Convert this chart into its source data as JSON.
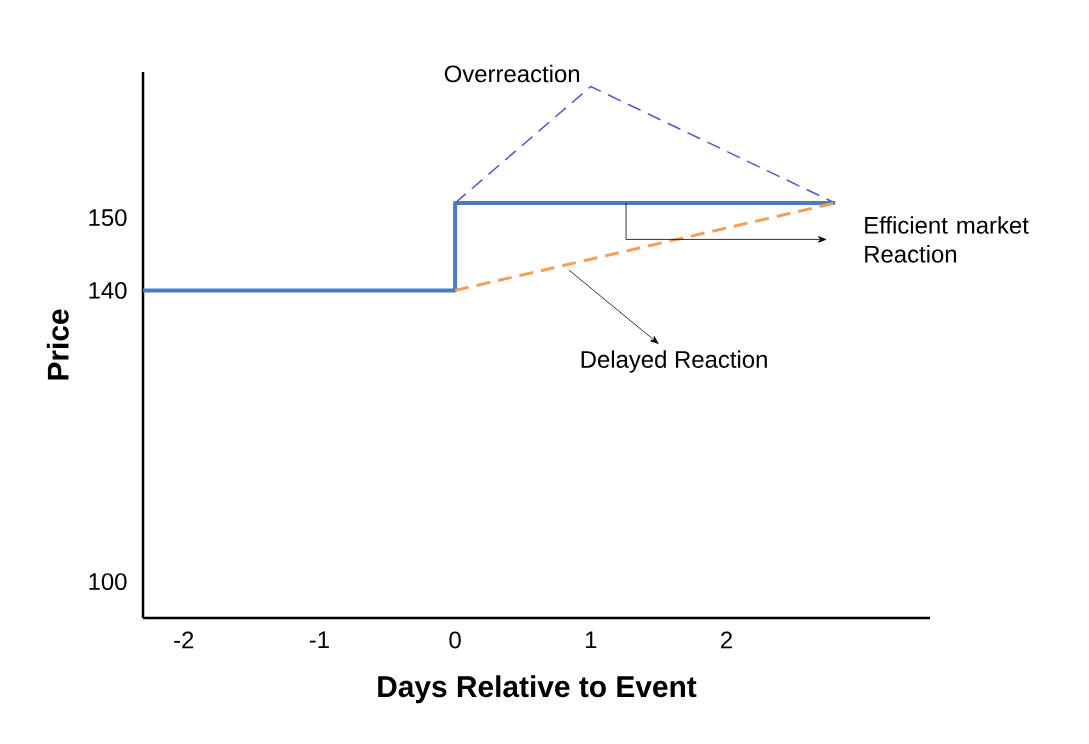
{
  "chart_data": {
    "type": "line",
    "xlabel": "Days Relative to Event",
    "ylabel": "Price",
    "xlim": [
      -2.3,
      3.5
    ],
    "ylim": [
      95,
      170
    ],
    "xticks": [
      -2,
      -1,
      0,
      1,
      2
    ],
    "yticks": [
      100,
      140,
      150
    ],
    "grid": false,
    "marker": "none",
    "series": [
      {
        "name": "Overreaction",
        "color": "#5555cc",
        "line_style": "dashed",
        "x": [
          0,
          1,
          2.8
        ],
        "values": [
          152,
          168,
          152
        ]
      },
      {
        "name": "Efficient market Reaction",
        "color": "#4a7cc0",
        "line_style": "solid",
        "x": [
          -2.3,
          0,
          0,
          2.8
        ],
        "values": [
          140,
          140,
          152,
          152
        ]
      },
      {
        "name": "Delayed Reaction",
        "color": "#f0a05a",
        "line_style": "dashed",
        "x": [
          0,
          2.8
        ],
        "values": [
          140,
          152
        ]
      }
    ]
  }
}
